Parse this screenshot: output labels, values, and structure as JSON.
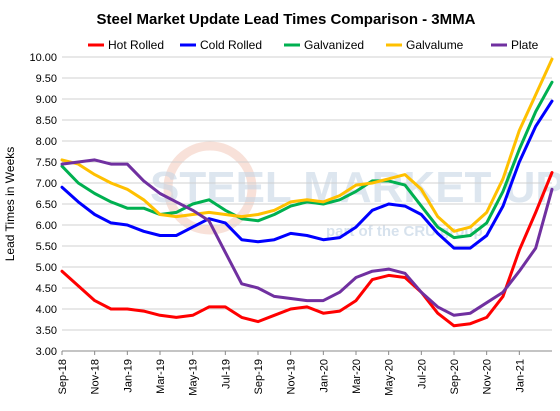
{
  "chart_data": {
    "type": "line",
    "title": "Steel Market Update Lead Times Comparison - 3MMA",
    "ylabel": "Lead Times in Weeks",
    "xlabel": "",
    "ylim": [
      3.0,
      10.0
    ],
    "yticks": [
      "3.00",
      "3.50",
      "4.00",
      "4.50",
      "5.00",
      "5.50",
      "6.00",
      "6.50",
      "7.00",
      "7.50",
      "8.00",
      "8.50",
      "9.00",
      "9.50",
      "10.00"
    ],
    "x_start": "2018-09",
    "x_tick_labels": [
      "Sep-18",
      "Nov-18",
      "Jan-19",
      "Mar-19",
      "May-19",
      "Jul-19",
      "Sep-19",
      "Nov-19",
      "Jan-20",
      "Mar-20",
      "May-20",
      "Jul-20",
      "Sep-20",
      "Nov-20",
      "Jan-21"
    ],
    "grid": "horizontal",
    "legend_position": "top",
    "series": [
      {
        "name": "Hot Rolled",
        "color": "#ff0000",
        "values": [
          4.9,
          4.55,
          4.2,
          4.0,
          4.0,
          3.95,
          3.85,
          3.8,
          3.85,
          4.05,
          4.05,
          3.8,
          3.7,
          3.85,
          4.0,
          4.05,
          3.9,
          3.95,
          4.2,
          4.7,
          4.8,
          4.75,
          4.4,
          3.9,
          3.6,
          3.65,
          3.8,
          4.3,
          5.4,
          6.3,
          7.25
        ]
      },
      {
        "name": "Cold Rolled",
        "color": "#0000ff",
        "values": [
          6.9,
          6.55,
          6.25,
          6.05,
          6.0,
          5.85,
          5.75,
          5.75,
          5.95,
          6.15,
          6.05,
          5.65,
          5.6,
          5.65,
          5.8,
          5.75,
          5.65,
          5.7,
          5.95,
          6.35,
          6.5,
          6.45,
          6.25,
          5.8,
          5.45,
          5.45,
          5.75,
          6.45,
          7.5,
          8.35,
          8.95
        ]
      },
      {
        "name": "Galvanized",
        "color": "#00b050",
        "values": [
          7.4,
          7.0,
          6.75,
          6.55,
          6.4,
          6.4,
          6.25,
          6.3,
          6.5,
          6.6,
          6.35,
          6.15,
          6.1,
          6.25,
          6.45,
          6.55,
          6.5,
          6.6,
          6.8,
          7.05,
          7.05,
          6.95,
          6.45,
          5.95,
          5.7,
          5.75,
          6.05,
          6.8,
          7.8,
          8.7,
          9.4
        ]
      },
      {
        "name": "Galvalume",
        "color": "#ffc000",
        "values": [
          7.55,
          7.45,
          7.2,
          7.0,
          6.85,
          6.6,
          6.25,
          6.2,
          6.25,
          6.3,
          6.25,
          6.2,
          6.25,
          6.35,
          6.55,
          6.6,
          6.55,
          6.7,
          6.95,
          7.0,
          7.1,
          7.2,
          6.85,
          6.2,
          5.85,
          5.95,
          6.3,
          7.1,
          8.25,
          9.1,
          9.95
        ]
      },
      {
        "name": "Plate",
        "color": "#7030a0",
        "values": [
          7.45,
          7.5,
          7.55,
          7.45,
          7.45,
          7.05,
          6.75,
          6.55,
          6.35,
          6.1,
          5.35,
          4.6,
          4.5,
          4.3,
          4.25,
          4.2,
          4.2,
          4.4,
          4.75,
          4.9,
          4.95,
          4.85,
          4.4,
          4.05,
          3.85,
          3.9,
          4.15,
          4.4,
          4.9,
          5.45,
          6.85
        ]
      }
    ]
  },
  "watermark": {
    "text": "STEEL MARKET UPDATE",
    "subtext": "part of the CRU group"
  }
}
